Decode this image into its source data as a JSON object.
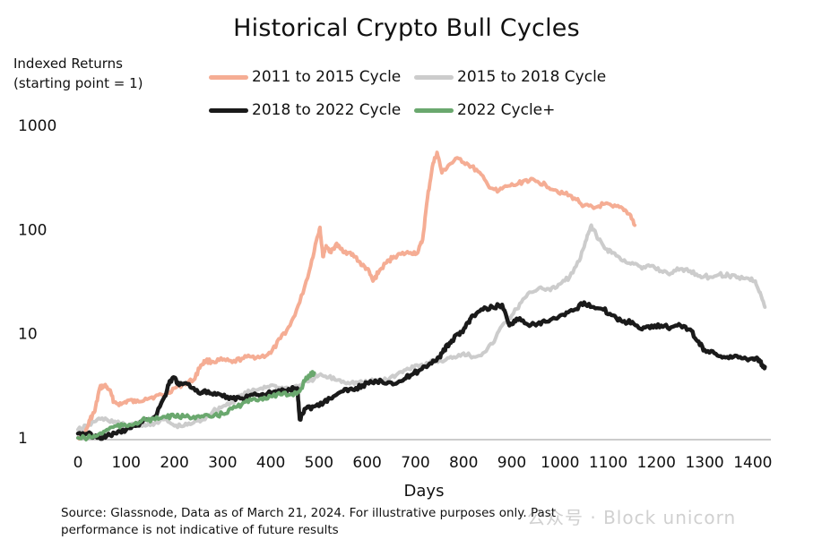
{
  "chart_data": {
    "type": "line",
    "title": "Historical Crypto Bull Cycles",
    "ylabel": "Indexed Returns (starting point = 1)",
    "xlabel": "Days",
    "yscale": "log",
    "ylim": [
      1,
      1000
    ],
    "xlim": [
      0,
      1430
    ],
    "y_ticks": [
      "1",
      "10",
      "100",
      "1000"
    ],
    "x_ticks": [
      "0",
      "100",
      "200",
      "300",
      "400",
      "500",
      "600",
      "700",
      "800",
      "900",
      "1000",
      "1100",
      "1200",
      "1300",
      "1400"
    ],
    "legend_position": "top",
    "series": [
      {
        "name": "2011 to 2015 Cycle",
        "color": "#f5ad94",
        "points": [
          [
            0,
            1.0
          ],
          [
            15,
            1.1
          ],
          [
            25,
            1.5
          ],
          [
            35,
            1.8
          ],
          [
            45,
            3.0
          ],
          [
            55,
            3.2
          ],
          [
            65,
            2.9
          ],
          [
            75,
            2.2
          ],
          [
            90,
            2.1
          ],
          [
            105,
            2.3
          ],
          [
            120,
            2.2
          ],
          [
            140,
            2.4
          ],
          [
            160,
            2.5
          ],
          [
            180,
            2.6
          ],
          [
            200,
            3.0
          ],
          [
            220,
            3.3
          ],
          [
            240,
            3.6
          ],
          [
            255,
            5.0
          ],
          [
            265,
            5.5
          ],
          [
            280,
            5.4
          ],
          [
            300,
            5.6
          ],
          [
            320,
            5.3
          ],
          [
            340,
            5.8
          ],
          [
            360,
            6.0
          ],
          [
            380,
            6.0
          ],
          [
            400,
            6.5
          ],
          [
            420,
            9.0
          ],
          [
            440,
            12.0
          ],
          [
            460,
            20.0
          ],
          [
            480,
            40.0
          ],
          [
            495,
            80.0
          ],
          [
            502,
            105.0
          ],
          [
            508,
            55.0
          ],
          [
            515,
            70.0
          ],
          [
            525,
            60.0
          ],
          [
            535,
            72.0
          ],
          [
            545,
            65.0
          ],
          [
            560,
            60.0
          ],
          [
            575,
            55.0
          ],
          [
            590,
            45.0
          ],
          [
            600,
            42.0
          ],
          [
            612,
            32.0
          ],
          [
            625,
            40.0
          ],
          [
            640,
            48.0
          ],
          [
            655,
            55.0
          ],
          [
            670,
            58.0
          ],
          [
            690,
            60.0
          ],
          [
            705,
            60.0
          ],
          [
            715,
            80.0
          ],
          [
            725,
            200.0
          ],
          [
            735,
            400.0
          ],
          [
            745,
            550.0
          ],
          [
            755,
            350.0
          ],
          [
            770,
            420.0
          ],
          [
            790,
            480.0
          ],
          [
            810,
            420.0
          ],
          [
            830,
            360.0
          ],
          [
            850,
            270.0
          ],
          [
            870,
            230.0
          ],
          [
            890,
            260.0
          ],
          [
            910,
            270.0
          ],
          [
            930,
            300.0
          ],
          [
            950,
            290.0
          ],
          [
            970,
            270.0
          ],
          [
            990,
            240.0
          ],
          [
            1010,
            220.0
          ],
          [
            1030,
            200.0
          ],
          [
            1050,
            170.0
          ],
          [
            1070,
            160.0
          ],
          [
            1090,
            175.0
          ],
          [
            1110,
            165.0
          ],
          [
            1130,
            160.0
          ],
          [
            1145,
            140.0
          ],
          [
            1155,
            110.0
          ]
        ]
      },
      {
        "name": "2015 to 2018 Cycle",
        "color": "#cccccc",
        "points": [
          [
            0,
            1.2
          ],
          [
            20,
            1.3
          ],
          [
            40,
            1.5
          ],
          [
            60,
            1.5
          ],
          [
            80,
            1.4
          ],
          [
            100,
            1.3
          ],
          [
            120,
            1.4
          ],
          [
            140,
            1.3
          ],
          [
            160,
            1.4
          ],
          [
            180,
            1.5
          ],
          [
            200,
            1.3
          ],
          [
            220,
            1.3
          ],
          [
            240,
            1.4
          ],
          [
            260,
            1.5
          ],
          [
            280,
            1.8
          ],
          [
            300,
            2.0
          ],
          [
            320,
            2.2
          ],
          [
            340,
            2.6
          ],
          [
            360,
            2.8
          ],
          [
            380,
            3.0
          ],
          [
            400,
            3.2
          ],
          [
            420,
            3.0
          ],
          [
            440,
            3.0
          ],
          [
            460,
            3.2
          ],
          [
            480,
            3.5
          ],
          [
            500,
            4.0
          ],
          [
            520,
            3.8
          ],
          [
            540,
            3.6
          ],
          [
            560,
            3.4
          ],
          [
            580,
            3.4
          ],
          [
            600,
            3.4
          ],
          [
            620,
            3.6
          ],
          [
            640,
            3.6
          ],
          [
            660,
            4.0
          ],
          [
            680,
            4.5
          ],
          [
            700,
            5.0
          ],
          [
            720,
            5.0
          ],
          [
            740,
            5.5
          ],
          [
            760,
            5.5
          ],
          [
            780,
            6.0
          ],
          [
            800,
            6.5
          ],
          [
            820,
            6.0
          ],
          [
            840,
            6.5
          ],
          [
            860,
            8.0
          ],
          [
            880,
            12.0
          ],
          [
            900,
            15.0
          ],
          [
            920,
            20.0
          ],
          [
            940,
            25.0
          ],
          [
            960,
            28.0
          ],
          [
            980,
            26.0
          ],
          [
            1000,
            30.0
          ],
          [
            1020,
            35.0
          ],
          [
            1040,
            50.0
          ],
          [
            1055,
            80.0
          ],
          [
            1065,
            110.0
          ],
          [
            1080,
            80.0
          ],
          [
            1095,
            65.0
          ],
          [
            1110,
            60.0
          ],
          [
            1130,
            50.0
          ],
          [
            1150,
            48.0
          ],
          [
            1170,
            42.0
          ],
          [
            1190,
            45.0
          ],
          [
            1210,
            40.0
          ],
          [
            1230,
            38.0
          ],
          [
            1250,
            42.0
          ],
          [
            1270,
            40.0
          ],
          [
            1290,
            36.0
          ],
          [
            1310,
            35.0
          ],
          [
            1330,
            37.0
          ],
          [
            1350,
            36.0
          ],
          [
            1370,
            35.0
          ],
          [
            1390,
            34.0
          ],
          [
            1405,
            32.0
          ],
          [
            1415,
            25.0
          ],
          [
            1425,
            18.0
          ]
        ]
      },
      {
        "name": "2018 to 2022 Cycle",
        "color": "#1a1a1a",
        "points": [
          [
            0,
            1.1
          ],
          [
            20,
            1.1
          ],
          [
            40,
            1.0
          ],
          [
            60,
            1.05
          ],
          [
            80,
            1.1
          ],
          [
            100,
            1.2
          ],
          [
            120,
            1.3
          ],
          [
            140,
            1.5
          ],
          [
            160,
            1.6
          ],
          [
            180,
            2.5
          ],
          [
            190,
            3.5
          ],
          [
            200,
            3.8
          ],
          [
            210,
            3.2
          ],
          [
            230,
            3.3
          ],
          [
            250,
            2.7
          ],
          [
            260,
            2.8
          ],
          [
            280,
            2.6
          ],
          [
            300,
            2.5
          ],
          [
            320,
            2.4
          ],
          [
            340,
            2.4
          ],
          [
            360,
            2.6
          ],
          [
            380,
            2.6
          ],
          [
            400,
            2.7
          ],
          [
            420,
            2.8
          ],
          [
            440,
            2.9
          ],
          [
            455,
            3.0
          ],
          [
            460,
            1.5
          ],
          [
            470,
            1.9
          ],
          [
            490,
            2.0
          ],
          [
            510,
            2.2
          ],
          [
            530,
            2.5
          ],
          [
            550,
            2.8
          ],
          [
            570,
            2.9
          ],
          [
            590,
            3.2
          ],
          [
            610,
            3.4
          ],
          [
            630,
            3.5
          ],
          [
            650,
            3.4
          ],
          [
            670,
            3.5
          ],
          [
            690,
            4.0
          ],
          [
            710,
            4.5
          ],
          [
            730,
            5.2
          ],
          [
            750,
            6.0
          ],
          [
            760,
            7.0
          ],
          [
            770,
            8.0
          ],
          [
            780,
            9.0
          ],
          [
            790,
            10.0
          ],
          [
            800,
            11.0
          ],
          [
            810,
            13.0
          ],
          [
            820,
            15.0
          ],
          [
            840,
            17.0
          ],
          [
            860,
            18.0
          ],
          [
            880,
            19.0
          ],
          [
            895,
            12.0
          ],
          [
            910,
            14.0
          ],
          [
            930,
            12.5
          ],
          [
            950,
            12.0
          ],
          [
            970,
            13.0
          ],
          [
            990,
            14.0
          ],
          [
            1010,
            15.0
          ],
          [
            1030,
            17.0
          ],
          [
            1050,
            20.0
          ],
          [
            1070,
            18.0
          ],
          [
            1090,
            17.0
          ],
          [
            1110,
            15.0
          ],
          [
            1130,
            13.0
          ],
          [
            1150,
            13.0
          ],
          [
            1170,
            11.0
          ],
          [
            1190,
            12.0
          ],
          [
            1210,
            12.0
          ],
          [
            1230,
            11.5
          ],
          [
            1250,
            12.0
          ],
          [
            1270,
            11.0
          ],
          [
            1285,
            8.5
          ],
          [
            1300,
            7.0
          ],
          [
            1320,
            6.5
          ],
          [
            1340,
            6.0
          ],
          [
            1360,
            6.0
          ],
          [
            1380,
            5.8
          ],
          [
            1400,
            5.8
          ],
          [
            1410,
            5.8
          ],
          [
            1420,
            5.0
          ],
          [
            1425,
            4.8
          ]
        ]
      },
      {
        "name": "2022 Cycle+",
        "color": "#6aa86e",
        "points": [
          [
            0,
            1.0
          ],
          [
            20,
            1.0
          ],
          [
            40,
            1.05
          ],
          [
            60,
            1.2
          ],
          [
            80,
            1.3
          ],
          [
            100,
            1.3
          ],
          [
            120,
            1.4
          ],
          [
            140,
            1.5
          ],
          [
            160,
            1.5
          ],
          [
            180,
            1.6
          ],
          [
            200,
            1.6
          ],
          [
            220,
            1.6
          ],
          [
            240,
            1.6
          ],
          [
            260,
            1.6
          ],
          [
            280,
            1.6
          ],
          [
            300,
            1.7
          ],
          [
            320,
            1.9
          ],
          [
            340,
            2.1
          ],
          [
            360,
            2.3
          ],
          [
            380,
            2.4
          ],
          [
            400,
            2.5
          ],
          [
            420,
            2.6
          ],
          [
            440,
            2.6
          ],
          [
            460,
            2.8
          ],
          [
            470,
            3.5
          ],
          [
            480,
            4.0
          ],
          [
            490,
            4.2
          ]
        ]
      }
    ]
  },
  "footnote": "Source: Glassnode, Data as of March 21, 2024. For illustrative purposes only. Past performance is not indicative of future results",
  "watermark": "公众号 · Block unicorn"
}
